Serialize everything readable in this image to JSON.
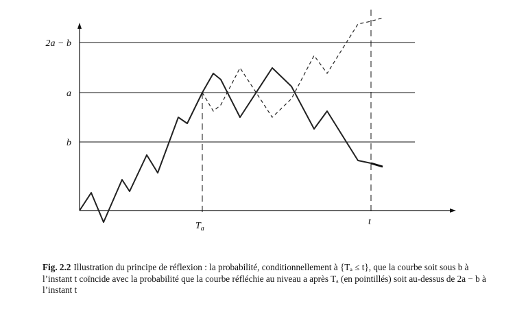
{
  "figure": {
    "y_labels": {
      "two_a_minus_b": "2a − b",
      "a": "a",
      "b": "b"
    },
    "x_labels": {
      "t_a": "T",
      "t_a_sub": "a",
      "t": "t"
    }
  },
  "caption": {
    "lead": "Fig. 2.2",
    "text": "Illustration du principe de réflexion : la probabilité, conditionnellement à {Tₐ ≤ t}, que la courbe soit sous b à l’instant t coïncide avec la probabilité que la courbe réfléchie au niveau a après Tₐ (en pointillés) soit au-dessus de 2a − b à l’instant t"
  }
}
